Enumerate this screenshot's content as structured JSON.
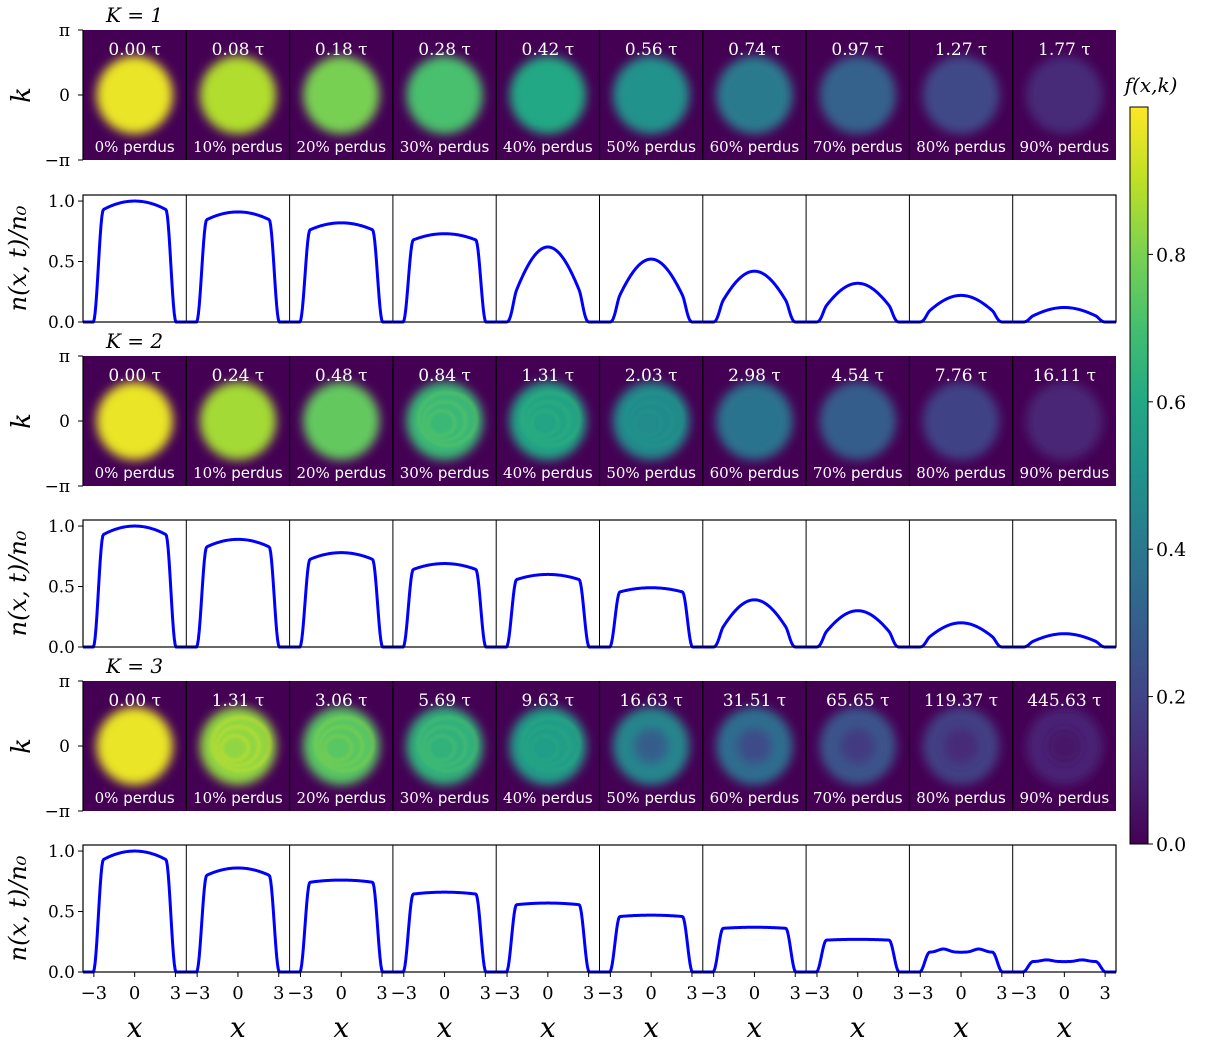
{
  "chart_data": {
    "type": "heatmap",
    "colorbar": {
      "label": "f(x,k)",
      "ticks": [
        "0.0",
        "0.2",
        "0.4",
        "0.6",
        "0.8"
      ],
      "range": [
        0,
        1
      ]
    },
    "heatmap_ylabel": "k",
    "heatmap_yticks": [
      "π",
      "0",
      "−π"
    ],
    "density_ylabel": "n(x, t)/n₀",
    "density_yticks": [
      "1.0",
      "0.5",
      "0.0"
    ],
    "density_ylim": [
      0,
      1.05
    ],
    "xlabel": "x",
    "xticks": [
      "−3",
      "0",
      "3"
    ],
    "x_range": [
      -3.8,
      3.8
    ],
    "perdus_word": "perdus",
    "lost_percent": [
      "0%",
      "10%",
      "20%",
      "30%",
      "40%",
      "50%",
      "60%",
      "70%",
      "80%",
      "90%"
    ],
    "series": [
      {
        "name": "K = 1",
        "times": [
          "0.00 τ",
          "0.08 τ",
          "0.18 τ",
          "0.28 τ",
          "0.42 τ",
          "0.56 τ",
          "0.74 τ",
          "0.97 τ",
          "1.27 τ",
          "1.77 τ"
        ],
        "peak_density": [
          1.0,
          0.91,
          0.82,
          0.73,
          0.62,
          0.52,
          0.42,
          0.32,
          0.22,
          0.12
        ],
        "profile_shape": [
          "plateau",
          "plateau",
          "plateau",
          "plateau",
          "smooth",
          "smooth",
          "smooth",
          "smooth",
          "smooth",
          "smooth"
        ]
      },
      {
        "name": "K = 2",
        "times": [
          "0.00 τ",
          "0.24 τ",
          "0.48 τ",
          "0.84 τ",
          "1.31 τ",
          "2.03 τ",
          "2.98 τ",
          "4.54 τ",
          "7.76 τ",
          "16.11 τ"
        ],
        "peak_density": [
          1.0,
          0.89,
          0.78,
          0.69,
          0.6,
          0.49,
          0.39,
          0.3,
          0.2,
          0.11
        ],
        "profile_shape": [
          "plateau",
          "plateau",
          "plateau",
          "plateau",
          "plateau",
          "plateau",
          "smooth",
          "smooth",
          "smooth",
          "smooth"
        ]
      },
      {
        "name": "K = 3",
        "times": [
          "0.00 τ",
          "1.31 τ",
          "3.06 τ",
          "5.69 τ",
          "9.63 τ",
          "16.63 τ",
          "31.51 τ",
          "65.65 τ",
          "119.37 τ",
          "445.63 τ"
        ],
        "peak_density": [
          1.0,
          0.86,
          0.76,
          0.66,
          0.57,
          0.47,
          0.37,
          0.27,
          0.19,
          0.1
        ],
        "profile_shape": [
          "plateau",
          "plateau",
          "flat",
          "flat",
          "flat",
          "flat",
          "flat",
          "flat",
          "dip",
          "dip"
        ]
      }
    ]
  }
}
